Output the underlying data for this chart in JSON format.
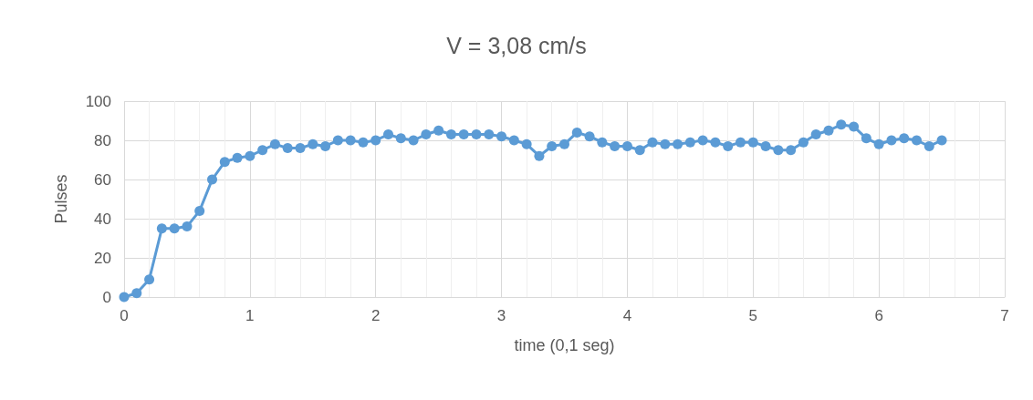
{
  "chart_data": {
    "type": "line",
    "title": "V = 3,08 cm/s",
    "xlabel": "time (0,1 seg)",
    "ylabel": "Pulses",
    "x": [
      0,
      0.1,
      0.2,
      0.3,
      0.4,
      0.5,
      0.6,
      0.7,
      0.8,
      0.9,
      1.0,
      1.1,
      1.2,
      1.3,
      1.4,
      1.5,
      1.6,
      1.7,
      1.8,
      1.9,
      2.0,
      2.1,
      2.2,
      2.3,
      2.4,
      2.5,
      2.6,
      2.7,
      2.8,
      2.9,
      3.0,
      3.1,
      3.2,
      3.3,
      3.4,
      3.5,
      3.6,
      3.7,
      3.8,
      3.9,
      4.0,
      4.1,
      4.2,
      4.3,
      4.4,
      4.5,
      4.6,
      4.7,
      4.8,
      4.9,
      5.0,
      5.1,
      5.2,
      5.3,
      5.4,
      5.5,
      5.6,
      5.7,
      5.8,
      5.9,
      6.0,
      6.1,
      6.2,
      6.3,
      6.4,
      6.5
    ],
    "series": [
      {
        "color": "#5b9bd5",
        "values": [
          0,
          2,
          9,
          35,
          35,
          36,
          44,
          60,
          69,
          71,
          72,
          75,
          78,
          76,
          76,
          78,
          77,
          80,
          80,
          79,
          80,
          83,
          81,
          80,
          83,
          85,
          83,
          83,
          83,
          83,
          82,
          80,
          78,
          72,
          77,
          78,
          84,
          82,
          79,
          77,
          77,
          75,
          79,
          78,
          78,
          79,
          80,
          79,
          77,
          79,
          79,
          77,
          75,
          75,
          79,
          83,
          85,
          88,
          87,
          81,
          78,
          80,
          81,
          80,
          77,
          80
        ]
      }
    ],
    "xlim": [
      0,
      7
    ],
    "xticks": [
      0,
      1,
      2,
      3,
      4,
      5,
      6,
      7
    ],
    "ylim": [
      0,
      100
    ],
    "yticks": [
      0,
      20,
      40,
      60,
      80,
      100
    ],
    "grid": true,
    "marker": "circle",
    "line_style": "solid"
  }
}
